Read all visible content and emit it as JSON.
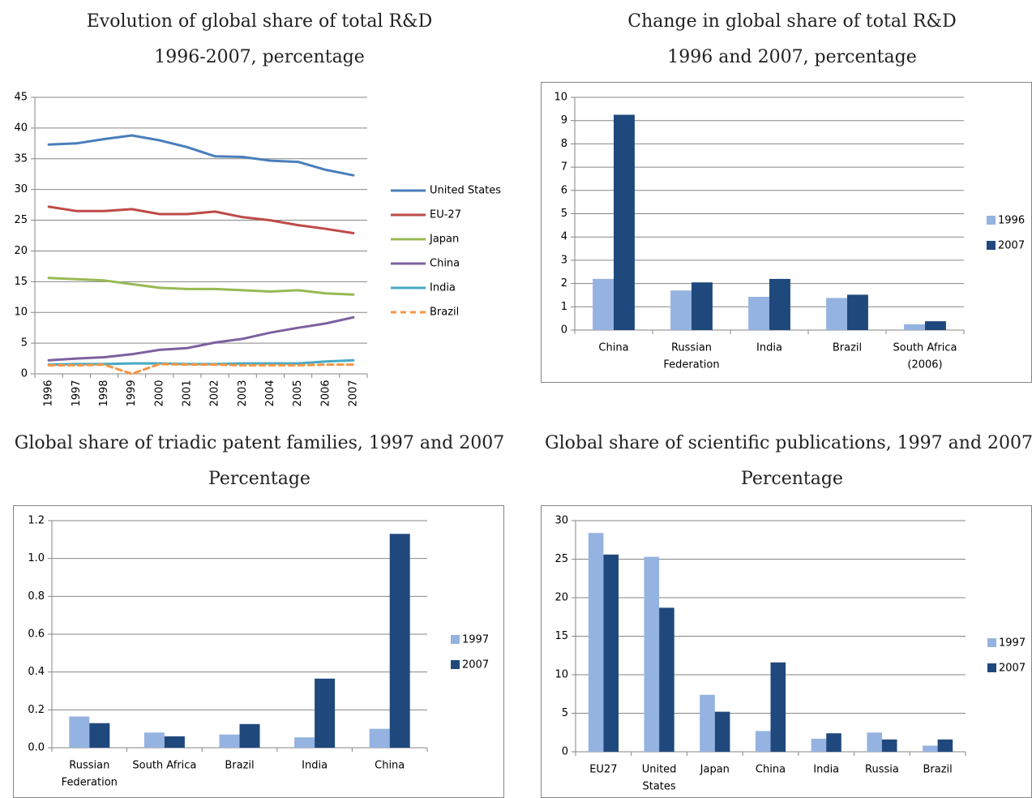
{
  "colors": {
    "us": "#4a7ebb",
    "eu": "#be4b48",
    "japan": "#98b954",
    "china": "#7d60a0",
    "india": "#46aac5",
    "brazil": "#f79646",
    "light_bar": "#95b3e0",
    "dark_bar": "#1f497d",
    "grid": "#868686",
    "axis_text": "#000000"
  },
  "chart_data": [
    {
      "id": "rd-evolution",
      "type": "line",
      "title": "Evolution of global share of total R&D",
      "subtitle": "1996-2007, percentage",
      "xlabel": "",
      "ylabel": "",
      "x": [
        "1996",
        "1997",
        "1998",
        "1999",
        "2000",
        "2001",
        "2002",
        "2003",
        "2004",
        "2005",
        "2006",
        "2007"
      ],
      "ylim": [
        0,
        45
      ],
      "yticks": [
        "0",
        "5",
        "10",
        "15",
        "20",
        "25",
        "30",
        "35",
        "40",
        "45"
      ],
      "grid": true,
      "legend": "right",
      "series": [
        {
          "name": "United States",
          "color_key": "us",
          "dashed": false,
          "values": [
            37.3,
            37.5,
            38.2,
            38.8,
            38.0,
            36.9,
            35.4,
            35.3,
            34.7,
            34.5,
            33.2,
            32.3
          ]
        },
        {
          "name": "EU-27",
          "color_key": "eu",
          "dashed": false,
          "values": [
            27.2,
            26.5,
            26.5,
            26.8,
            26.0,
            26.0,
            26.4,
            25.5,
            25.0,
            24.2,
            23.6,
            22.9
          ]
        },
        {
          "name": "Japan",
          "color_key": "japan",
          "dashed": false,
          "values": [
            15.6,
            15.4,
            15.2,
            14.6,
            14.0,
            13.8,
            13.8,
            13.6,
            13.4,
            13.6,
            13.1,
            12.9
          ]
        },
        {
          "name": "China",
          "color_key": "china",
          "dashed": false,
          "values": [
            2.2,
            2.5,
            2.7,
            3.2,
            3.9,
            4.2,
            5.1,
            5.7,
            6.7,
            7.5,
            8.2,
            9.2
          ]
        },
        {
          "name": "India",
          "color_key": "india",
          "dashed": false,
          "values": [
            1.5,
            1.6,
            1.6,
            1.7,
            1.7,
            1.6,
            1.6,
            1.7,
            1.7,
            1.7,
            2.0,
            2.2
          ]
        },
        {
          "name": "Brazil",
          "color_key": "brazil",
          "dashed": true,
          "values": [
            1.4,
            1.4,
            1.5,
            0.0,
            1.6,
            1.5,
            1.5,
            1.4,
            1.4,
            1.4,
            1.5,
            1.5
          ]
        }
      ]
    },
    {
      "id": "rd-change",
      "type": "bar",
      "title": "Change in global share of total R&D",
      "subtitle": "1996 and 2007, percentage",
      "xlabel": "",
      "ylabel": "",
      "categories": [
        [
          "China"
        ],
        [
          "Russian",
          "Federation"
        ],
        [
          "India"
        ],
        [
          "Brazil"
        ],
        [
          "South Africa",
          "(2006)"
        ]
      ],
      "ylim": [
        0,
        10
      ],
      "yticks": [
        "0",
        "1",
        "2",
        "3",
        "4",
        "5",
        "6",
        "7",
        "8",
        "9",
        "10"
      ],
      "grid": true,
      "legend": "right",
      "series": [
        {
          "name": "1996",
          "color_key": "light_bar",
          "values": [
            2.2,
            1.7,
            1.43,
            1.38,
            0.25
          ]
        },
        {
          "name": "2007",
          "color_key": "dark_bar",
          "values": [
            9.25,
            2.05,
            2.2,
            1.52,
            0.38
          ]
        }
      ]
    },
    {
      "id": "patents",
      "type": "bar",
      "title": "Global share of triadic patent families, 1997 and 2007",
      "subtitle": "Percentage",
      "xlabel": "",
      "ylabel": "",
      "categories": [
        [
          "Russian",
          "Federation"
        ],
        [
          "South Africa"
        ],
        [
          "Brazil"
        ],
        [
          "India"
        ],
        [
          "China"
        ]
      ],
      "ylim": [
        0,
        1.2
      ],
      "yticks": [
        "0.0",
        "0.2",
        "0.4",
        "0.6",
        "0.8",
        "1.0",
        "1.2"
      ],
      "grid": true,
      "legend": "right",
      "series": [
        {
          "name": "1997",
          "color_key": "light_bar",
          "values": [
            0.165,
            0.08,
            0.07,
            0.055,
            0.1
          ]
        },
        {
          "name": "2007",
          "color_key": "dark_bar",
          "values": [
            0.13,
            0.06,
            0.125,
            0.365,
            1.13
          ]
        }
      ]
    },
    {
      "id": "publications",
      "type": "bar",
      "title": "Global share of scientific publications, 1997 and 2007",
      "subtitle": "Percentage",
      "xlabel": "",
      "ylabel": "",
      "categories": [
        [
          "EU27"
        ],
        [
          "United",
          "States"
        ],
        [
          "Japan"
        ],
        [
          "China"
        ],
        [
          "India"
        ],
        [
          "Russia"
        ],
        [
          "Brazil"
        ]
      ],
      "ylim": [
        0,
        30
      ],
      "yticks": [
        "0",
        "5",
        "10",
        "15",
        "20",
        "25",
        "30"
      ],
      "grid": true,
      "legend": "right",
      "series": [
        {
          "name": "1997",
          "color_key": "light_bar",
          "values": [
            28.4,
            25.3,
            7.4,
            2.7,
            1.7,
            2.5,
            0.8
          ]
        },
        {
          "name": "2007",
          "color_key": "dark_bar",
          "values": [
            25.6,
            18.7,
            5.2,
            11.6,
            2.4,
            1.6,
            1.6
          ]
        }
      ]
    }
  ]
}
